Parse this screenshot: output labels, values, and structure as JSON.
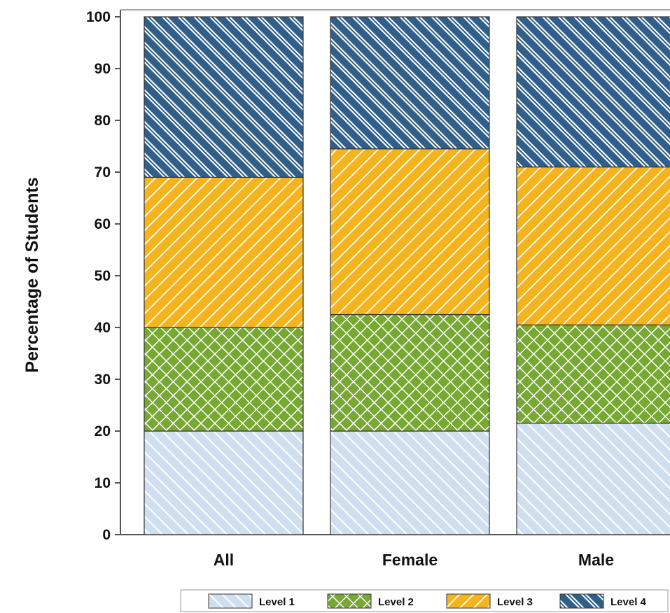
{
  "chart_data": {
    "type": "bar",
    "stacked": true,
    "categories": [
      "All",
      "Female",
      "Male"
    ],
    "series": [
      {
        "name": "Level 1",
        "values": [
          20,
          20,
          21.5
        ],
        "color": "#d0dff0",
        "pattern": "diagonal-light"
      },
      {
        "name": "Level 2",
        "values": [
          20,
          22.5,
          19
        ],
        "color": "#76a832",
        "pattern": "crosshatch"
      },
      {
        "name": "Level 3",
        "values": [
          29,
          32,
          30.5
        ],
        "color": "#f5b41e",
        "pattern": "diagonal"
      },
      {
        "name": "Level 4",
        "values": [
          31,
          25.5,
          29
        ],
        "color": "#2f5f8a",
        "pattern": "diagonal-reverse"
      }
    ],
    "title": "",
    "xlabel": "",
    "ylabel": "Percentage of Students",
    "ylim": [
      0,
      100
    ],
    "yticks": [
      "0",
      "10",
      "20",
      "30",
      "40",
      "50",
      "60",
      "70",
      "80",
      "90",
      "100"
    ],
    "grid": false,
    "legend_position": "bottom-right"
  }
}
